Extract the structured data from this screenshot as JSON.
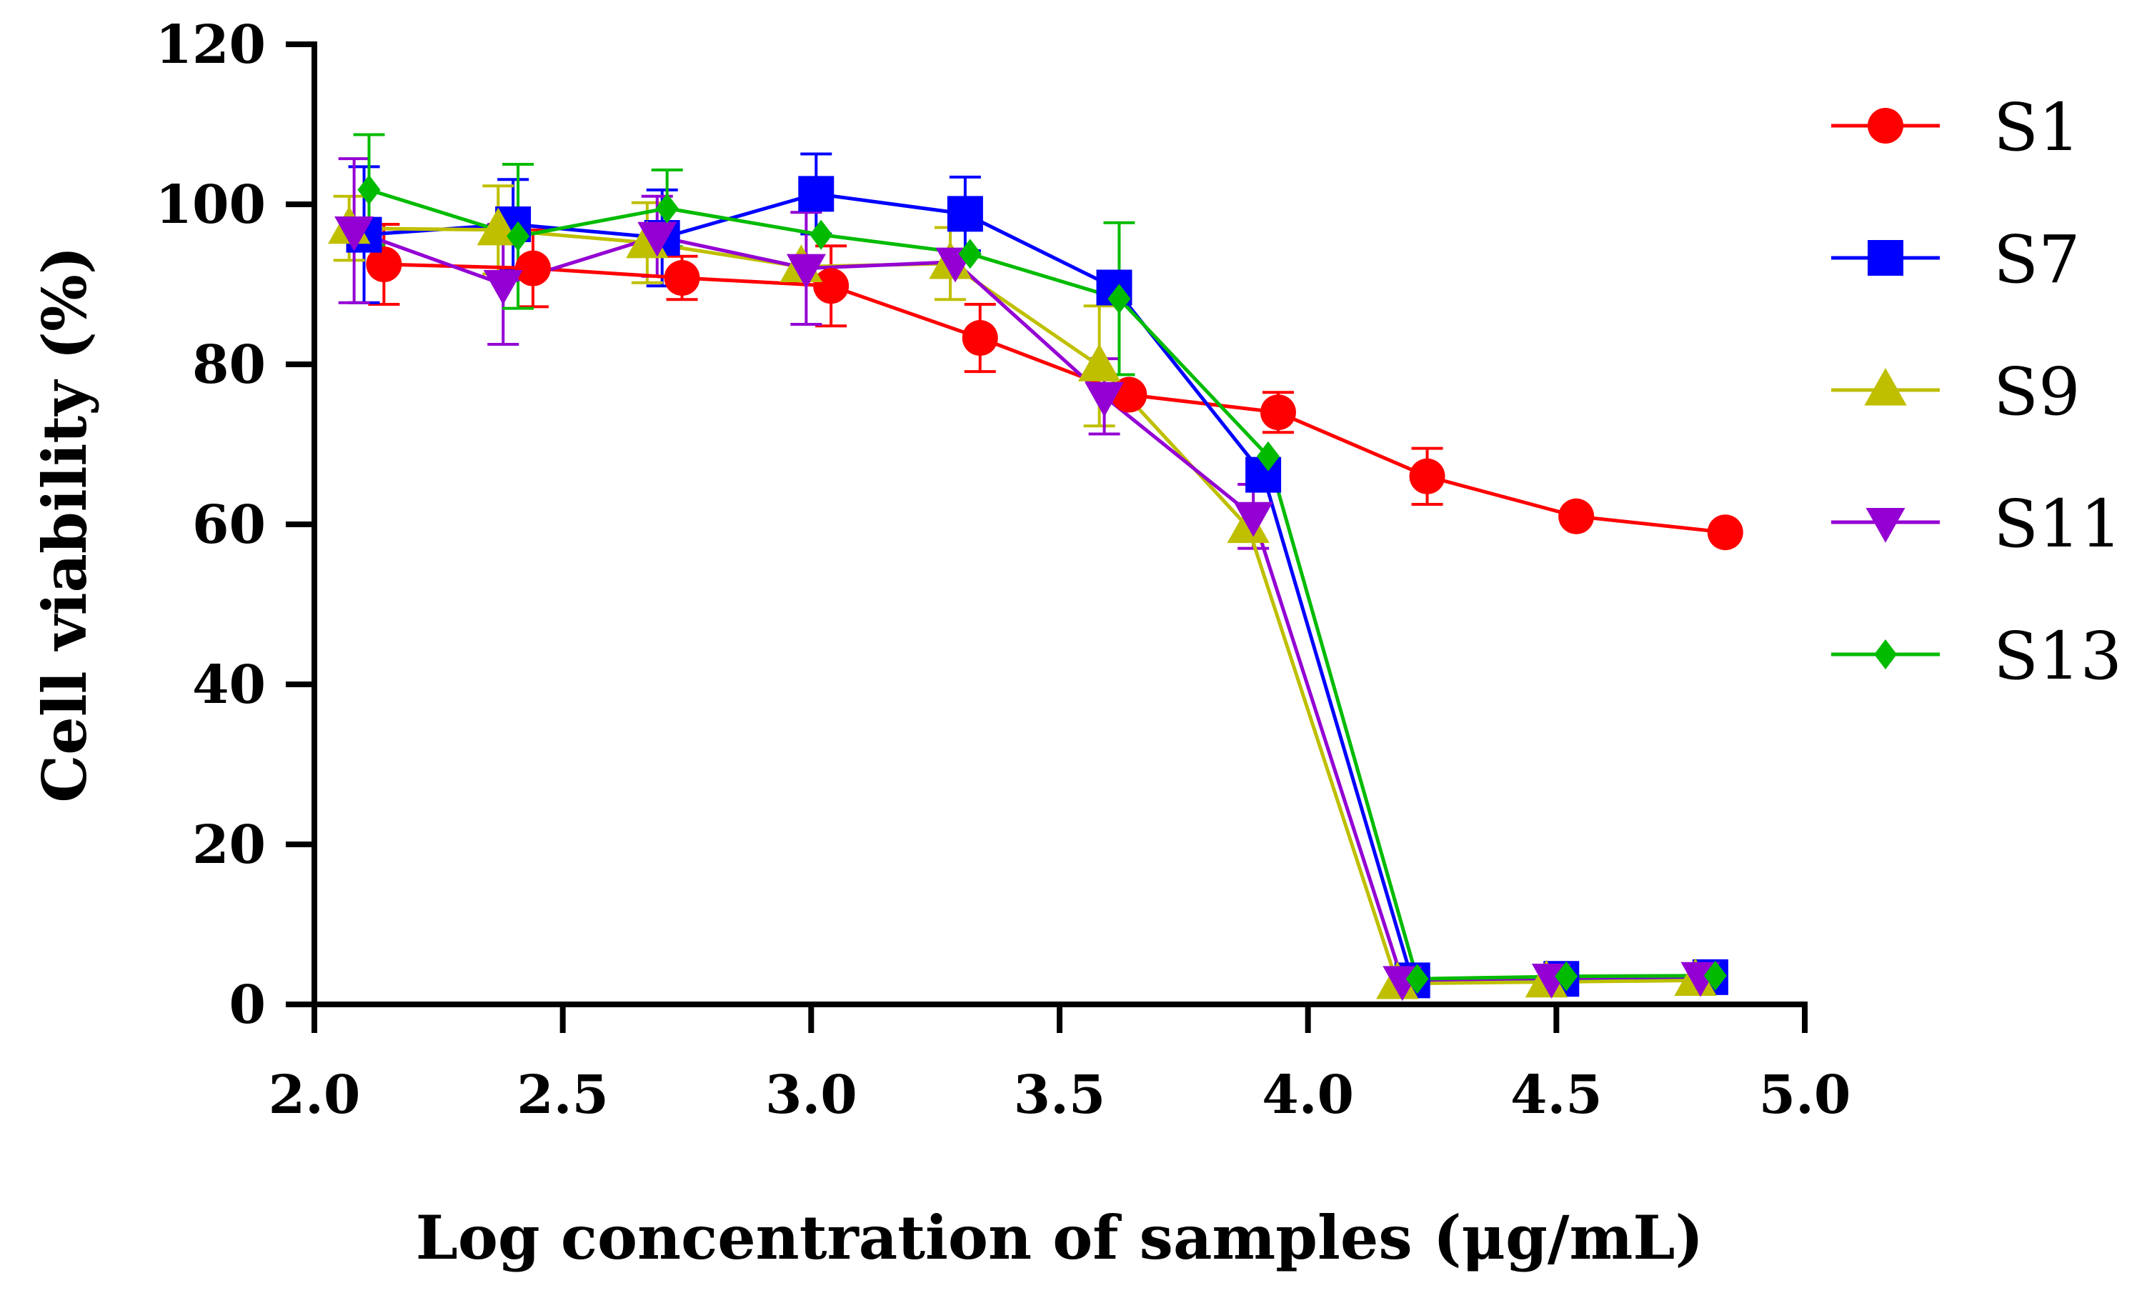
{
  "chart_data": {
    "type": "line",
    "title": "",
    "xlabel": "Log concentration of samples (μg/mL)",
    "ylabel": "Cell viability (%)",
    "xlim": [
      2.0,
      5.0
    ],
    "ylim": [
      0,
      120
    ],
    "xticks": [
      2.0,
      2.5,
      3.0,
      3.5,
      4.0,
      4.5,
      5.0
    ],
    "xtick_labels": [
      "2.0",
      "2.5",
      "3.0",
      "3.5",
      "4.0",
      "4.5",
      "5.0"
    ],
    "yticks": [
      0,
      20,
      40,
      60,
      80,
      100,
      120
    ],
    "ytick_labels": [
      "0",
      "20",
      "40",
      "60",
      "80",
      "100",
      "120"
    ],
    "grid": false,
    "legend_position": "right",
    "series": [
      {
        "name": "S1",
        "color": "#ff0000",
        "marker": "circle",
        "x": [
          2.14,
          2.44,
          2.74,
          3.04,
          3.34,
          3.64,
          3.94,
          4.24,
          4.54,
          4.84
        ],
        "y": [
          92.5,
          92.0,
          90.8,
          89.8,
          83.3,
          76.2,
          74.0,
          66.0,
          61.0,
          59.0
        ],
        "err": [
          5.0,
          4.8,
          2.7,
          5.0,
          4.2,
          0,
          2.5,
          3.5,
          0,
          0
        ]
      },
      {
        "name": "S7",
        "color": "#0000ff",
        "marker": "square",
        "x": [
          2.1,
          2.4,
          2.7,
          3.01,
          3.31,
          3.61,
          3.91,
          4.21,
          4.51,
          4.81
        ],
        "y": [
          96.2,
          97.5,
          95.8,
          101.3,
          98.8,
          89.6,
          66.2,
          3.0,
          3.2,
          3.4
        ],
        "err": [
          8.5,
          5.6,
          6.0,
          5.0,
          4.6,
          0,
          0,
          0,
          0,
          0
        ]
      },
      {
        "name": "S9",
        "color": "#bfbf00",
        "marker": "triangle-up",
        "x": [
          2.07,
          2.37,
          2.67,
          2.98,
          3.28,
          3.58,
          3.88,
          4.18,
          4.48,
          4.78
        ],
        "y": [
          97.0,
          96.8,
          95.2,
          92.2,
          92.6,
          79.8,
          59.6,
          2.6,
          2.8,
          3.0
        ],
        "err": [
          4.0,
          5.5,
          5.0,
          0,
          4.5,
          7.5,
          0,
          0,
          0,
          0
        ]
      },
      {
        "name": "S11",
        "color": "#9400d3",
        "marker": "triangle-down",
        "x": [
          2.08,
          2.38,
          2.69,
          2.99,
          3.29,
          3.59,
          3.89,
          4.19,
          4.49,
          4.79
        ],
        "y": [
          96.7,
          90.0,
          96.0,
          92.0,
          92.8,
          76.0,
          61.0,
          3.0,
          3.3,
          3.5
        ],
        "err": [
          9.0,
          7.5,
          5.0,
          7.0,
          0,
          4.7,
          4.0,
          0,
          0,
          0
        ]
      },
      {
        "name": "S13",
        "color": "#00bb00",
        "marker": "diamond",
        "x": [
          2.11,
          2.41,
          2.71,
          3.02,
          3.32,
          3.62,
          3.92,
          4.22,
          4.52,
          4.82
        ],
        "y": [
          101.8,
          96.0,
          99.5,
          96.2,
          93.8,
          88.2,
          68.5,
          3.2,
          3.5,
          3.6
        ],
        "err": [
          6.9,
          9.0,
          4.8,
          0,
          0,
          9.5,
          0,
          0,
          0,
          0
        ]
      }
    ]
  }
}
